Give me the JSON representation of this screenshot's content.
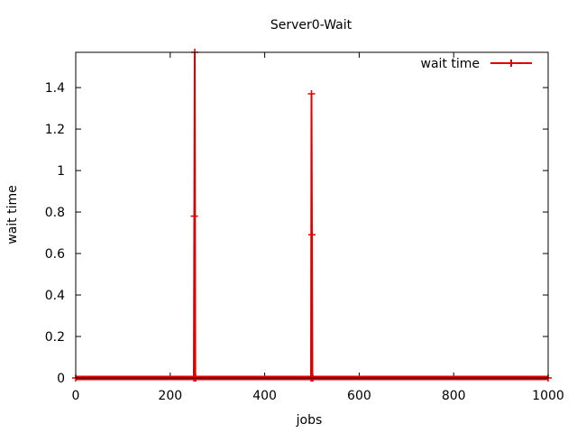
{
  "chart_data": {
    "type": "line",
    "title": "Server0-Wait",
    "xlabel": "jobs",
    "ylabel": "wait time",
    "xlim": [
      0,
      1000
    ],
    "ylim": [
      0,
      1.57
    ],
    "xticks": [
      0,
      200,
      400,
      600,
      800,
      1000
    ],
    "yticks": [
      0,
      0.2,
      0.4,
      0.6,
      0.8,
      1,
      1.2,
      1.4
    ],
    "xtick_labels": [
      "0",
      "200",
      "400",
      "600",
      "800",
      "1000"
    ],
    "ytick_labels": [
      "0",
      "0.2",
      "0.4",
      "0.6",
      "0.8",
      "1",
      "1.2",
      "1.4"
    ],
    "grid": false,
    "legend_position": "top-right",
    "series": [
      {
        "name": "wait time",
        "color": "#e00000",
        "marker": "plus",
        "x": [
          0,
          250,
          251,
          252,
          253,
          254,
          498,
          499,
          500,
          501,
          502,
          1000
        ],
        "y": [
          0,
          0,
          0.78,
          1.57,
          0,
          0,
          0,
          1.37,
          0.69,
          0,
          0,
          0
        ]
      }
    ]
  }
}
